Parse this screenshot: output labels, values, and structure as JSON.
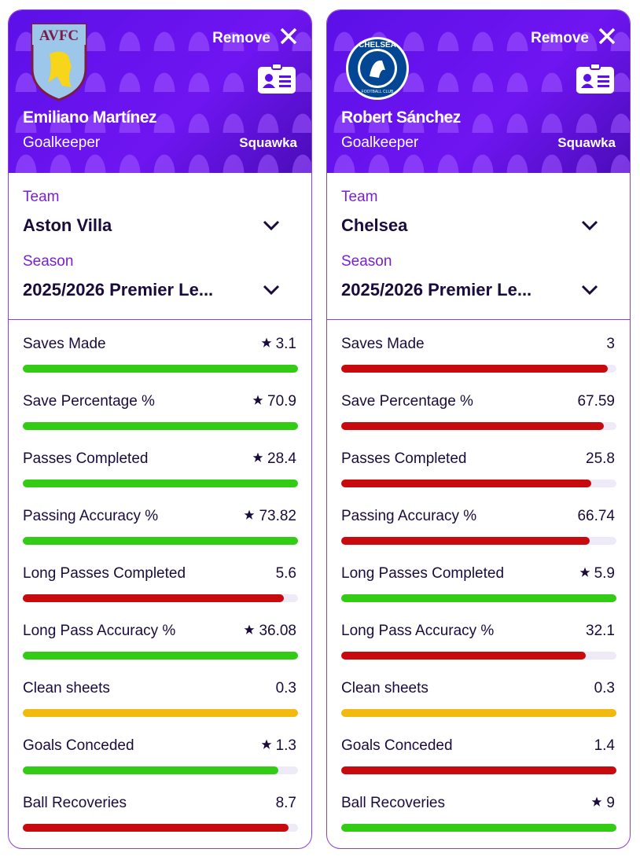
{
  "cards": [
    {
      "logo_text": "AVFC",
      "remove": "Remove",
      "name": "Emiliano Martínez",
      "position": "Goalkeeper",
      "source": "Squawka",
      "team_label": "Team",
      "team": "Aston Villa",
      "season_label": "Season",
      "season": "2025/2026 Premier Le...",
      "stats": [
        {
          "label": "Saves Made",
          "value": 3.1,
          "best": true,
          "color": "#33cc14"
        },
        {
          "label": "Save Percentage %",
          "value": 70.9,
          "best": true,
          "color": "#33cc14"
        },
        {
          "label": "Passes Completed",
          "value": 28.4,
          "best": true,
          "color": "#33cc14"
        },
        {
          "label": "Passing Accuracy %",
          "value": 73.82,
          "best": true,
          "color": "#33cc14"
        },
        {
          "label": "Long Passes Completed",
          "value": 5.6,
          "best": false,
          "color": "#c8090e"
        },
        {
          "label": "Long Pass Accuracy %",
          "value": 36.08,
          "best": true,
          "color": "#33cc14"
        },
        {
          "label": "Clean sheets",
          "value": 0.3,
          "best": false,
          "color": "#f2b90f"
        },
        {
          "label": "Goals Conceded",
          "value": 1.3,
          "best": true,
          "color": "#33cc14"
        },
        {
          "label": "Ball Recoveries",
          "value": 8.7,
          "best": false,
          "color": "#c8090e"
        }
      ]
    },
    {
      "logo_text": "CHELSEA",
      "logo_subtext": "FOOTBALL CLUB",
      "remove": "Remove",
      "name": "Robert Sánchez",
      "position": "Goalkeeper",
      "source": "Squawka",
      "team_label": "Team",
      "team": "Chelsea",
      "season_label": "Season",
      "season": "2025/2026 Premier Le...",
      "stats": [
        {
          "label": "Saves Made",
          "value": 3,
          "best": false,
          "color": "#c8090e"
        },
        {
          "label": "Save Percentage %",
          "value": 67.59,
          "best": false,
          "color": "#c8090e"
        },
        {
          "label": "Passes Completed",
          "value": 25.8,
          "best": false,
          "color": "#c8090e"
        },
        {
          "label": "Passing Accuracy %",
          "value": 66.74,
          "best": false,
          "color": "#c8090e"
        },
        {
          "label": "Long Passes Completed",
          "value": 5.9,
          "best": true,
          "color": "#33cc14"
        },
        {
          "label": "Long Pass Accuracy %",
          "value": 32.1,
          "best": false,
          "color": "#c8090e"
        },
        {
          "label": "Clean sheets",
          "value": 0.3,
          "best": false,
          "color": "#f2b90f"
        },
        {
          "label": "Goals Conceded",
          "value": 1.4,
          "best": false,
          "color": "#c8090e"
        },
        {
          "label": "Ball Recoveries",
          "value": 9,
          "best": true,
          "color": "#33cc14"
        }
      ]
    }
  ]
}
